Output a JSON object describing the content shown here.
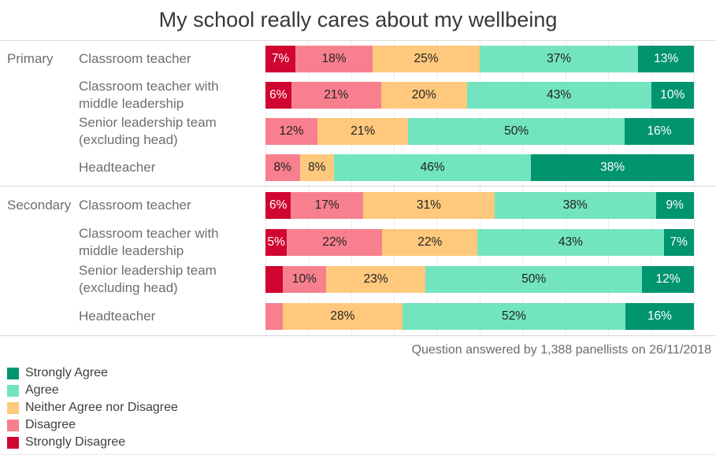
{
  "title": "My school really cares about my wellbeing",
  "caption": "Question answered by 1,388 panellists on 26/11/2018",
  "colors": {
    "strongly_agree": "#00946F",
    "agree": "#73E4C0",
    "neither": "#FFC97D",
    "disagree": "#F8808E",
    "strongly_disagree": "#D00630",
    "gridline": "#ECECEC",
    "separator": "#D8D8D8",
    "title_text": "#383838",
    "muted_text": "#6E6E6E",
    "legend_text": "#3E3E3E",
    "segment_text_dark": "#222222",
    "segment_text_light": "#FFFFFF"
  },
  "legend": {
    "items": [
      {
        "key": "strongly_agree",
        "label": "Strongly Agree"
      },
      {
        "key": "agree",
        "label": "Agree"
      },
      {
        "key": "neither",
        "label": "Neither Agree nor Disagree"
      },
      {
        "key": "disagree",
        "label": "Disagree"
      },
      {
        "key": "strongly_disagree",
        "label": "Strongly Disagree"
      }
    ]
  },
  "chart_data": {
    "type": "bar",
    "orientation": "horizontal",
    "stacking": "percent",
    "title": "My school really cares about my wellbeing",
    "xlim": [
      0,
      100
    ],
    "grid": "vertical-10pct",
    "legend_position": "bottom-left",
    "series_order": [
      "Strongly Disagree",
      "Disagree",
      "Neither Agree nor Disagree",
      "Agree",
      "Strongly Agree"
    ],
    "light_text_keys": [
      "strongly_disagree",
      "strongly_agree"
    ],
    "sections": [
      {
        "name": "Primary",
        "rows": [
          {
            "category": "Classroom teacher",
            "segments": [
              {
                "key": "strongly_disagree",
                "value": 7,
                "label": "7%"
              },
              {
                "key": "disagree",
                "value": 18,
                "label": "18%"
              },
              {
                "key": "neither",
                "value": 25,
                "label": "25%"
              },
              {
                "key": "agree",
                "value": 37,
                "label": "37%"
              },
              {
                "key": "strongly_agree",
                "value": 13,
                "label": "13%"
              }
            ]
          },
          {
            "category": "Classroom teacher with middle leadership",
            "segments": [
              {
                "key": "strongly_disagree",
                "value": 6,
                "label": "6%"
              },
              {
                "key": "disagree",
                "value": 21,
                "label": "21%"
              },
              {
                "key": "neither",
                "value": 20,
                "label": "20%"
              },
              {
                "key": "agree",
                "value": 43,
                "label": "43%"
              },
              {
                "key": "strongly_agree",
                "value": 10,
                "label": "10%"
              }
            ]
          },
          {
            "category": "Senior leadership team (excluding head)",
            "segments": [
              {
                "key": "disagree",
                "value": 12,
                "label": "12%"
              },
              {
                "key": "neither",
                "value": 21,
                "label": "21%"
              },
              {
                "key": "agree",
                "value": 50,
                "label": "50%"
              },
              {
                "key": "strongly_agree",
                "value": 16,
                "label": "16%"
              }
            ]
          },
          {
            "category": "Headteacher",
            "segments": [
              {
                "key": "disagree",
                "value": 8,
                "label": "8%"
              },
              {
                "key": "neither",
                "value": 8,
                "label": "8%"
              },
              {
                "key": "agree",
                "value": 46,
                "label": "46%"
              },
              {
                "key": "strongly_agree",
                "value": 38,
                "label": "38%"
              }
            ]
          }
        ]
      },
      {
        "name": "Secondary",
        "rows": [
          {
            "category": "Classroom teacher",
            "segments": [
              {
                "key": "strongly_disagree",
                "value": 6,
                "label": "6%"
              },
              {
                "key": "disagree",
                "value": 17,
                "label": "17%"
              },
              {
                "key": "neither",
                "value": 31,
                "label": "31%"
              },
              {
                "key": "agree",
                "value": 38,
                "label": "38%"
              },
              {
                "key": "strongly_agree",
                "value": 9,
                "label": "9%"
              }
            ]
          },
          {
            "category": "Classroom teacher with middle leadership",
            "segments": [
              {
                "key": "strongly_disagree",
                "value": 5,
                "label": "5%"
              },
              {
                "key": "disagree",
                "value": 22,
                "label": "22%"
              },
              {
                "key": "neither",
                "value": 22,
                "label": "22%"
              },
              {
                "key": "agree",
                "value": 43,
                "label": "43%"
              },
              {
                "key": "strongly_agree",
                "value": 7,
                "label": "7%"
              }
            ]
          },
          {
            "category": "Senior leadership team (excluding head)",
            "segments": [
              {
                "key": "strongly_disagree",
                "value": 4,
                "label": ""
              },
              {
                "key": "disagree",
                "value": 10,
                "label": "10%"
              },
              {
                "key": "neither",
                "value": 23,
                "label": "23%"
              },
              {
                "key": "agree",
                "value": 50,
                "label": "50%"
              },
              {
                "key": "strongly_agree",
                "value": 12,
                "label": "12%"
              }
            ]
          },
          {
            "category": "Headteacher",
            "segments": [
              {
                "key": "disagree",
                "value": 4,
                "label": ""
              },
              {
                "key": "neither",
                "value": 28,
                "label": "28%"
              },
              {
                "key": "agree",
                "value": 52,
                "label": "52%"
              },
              {
                "key": "strongly_agree",
                "value": 16,
                "label": "16%"
              }
            ]
          }
        ]
      }
    ]
  }
}
